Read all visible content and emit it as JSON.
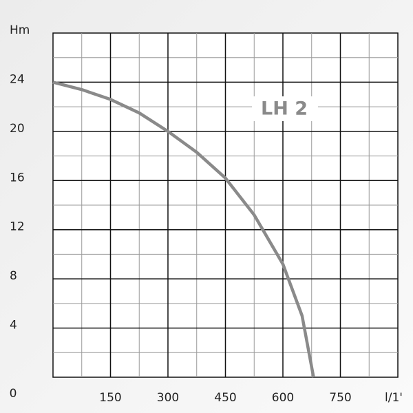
{
  "chart_data": {
    "type": "line",
    "title": "LH 2",
    "x_label": "l/1'",
    "y_label": "Hm",
    "origin_label": "0",
    "x": [
      0,
      75,
      150,
      225,
      300,
      375,
      450,
      525,
      600,
      650,
      680
    ],
    "series": [
      {
        "name": "LH 2",
        "color": "#8a8a8a",
        "values": [
          24,
          23.4,
          22.6,
          21.5,
          20,
          18.3,
          16.2,
          13.2,
          9.2,
          5,
          0
        ]
      }
    ],
    "xlim": [
      0,
      900
    ],
    "ylim": [
      0,
      28
    ],
    "xticks": [
      150,
      300,
      450,
      600,
      750
    ],
    "yticks": [
      4,
      8,
      12,
      16,
      20,
      24
    ],
    "xminor": [
      75,
      225,
      375,
      525,
      675,
      825
    ],
    "yminor": [
      2,
      6,
      10,
      14,
      18,
      22,
      26
    ],
    "grid": true
  }
}
